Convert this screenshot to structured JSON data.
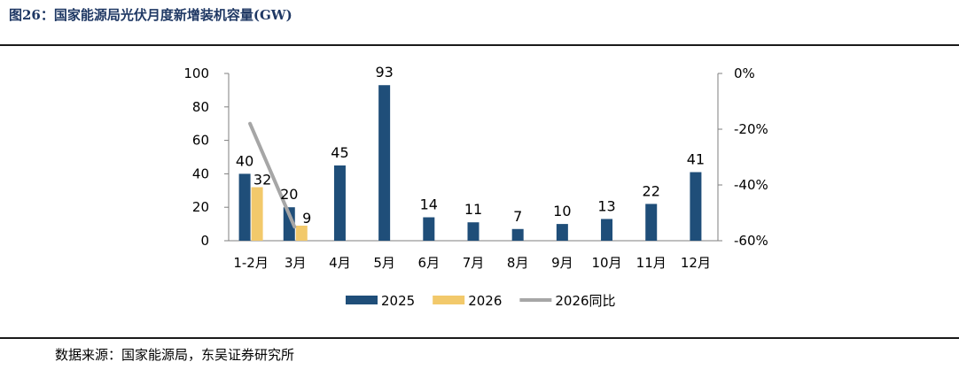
{
  "figure": {
    "title": "图26：国家能源局光伏月度新增装机容量(GW)",
    "source": "数据来源：国家能源局，东吴证券研究所"
  },
  "chart_data": {
    "type": "bar",
    "categories": [
      "1-2月",
      "3月",
      "4月",
      "5月",
      "6月",
      "7月",
      "8月",
      "9月",
      "10月",
      "11月",
      "12月"
    ],
    "series": [
      {
        "name": "2025",
        "type": "bar",
        "axis": "left",
        "color": "#1f4e79",
        "values": [
          40,
          20,
          45,
          93,
          14,
          11,
          7,
          10,
          13,
          22,
          41
        ]
      },
      {
        "name": "2026",
        "type": "bar",
        "axis": "left",
        "color": "#f2c96b",
        "values": [
          32,
          9,
          null,
          null,
          null,
          null,
          null,
          null,
          null,
          null,
          null
        ]
      },
      {
        "name": "2026同比",
        "type": "line",
        "axis": "right",
        "color": "#a6a6a6",
        "values": [
          -18,
          -55,
          null,
          null,
          null,
          null,
          null,
          null,
          null,
          null,
          null
        ]
      }
    ],
    "data_labels": [
      {
        "category": 0,
        "series": 0,
        "text": "40"
      },
      {
        "category": 0,
        "series": 1,
        "text": "32"
      },
      {
        "category": 1,
        "series": 0,
        "text": "20"
      },
      {
        "category": 1,
        "series": 1,
        "text": "9"
      },
      {
        "category": 2,
        "series": 0,
        "text": "45"
      },
      {
        "category": 3,
        "series": 0,
        "text": "93"
      },
      {
        "category": 4,
        "series": 0,
        "text": "14"
      },
      {
        "category": 5,
        "series": 0,
        "text": "11"
      },
      {
        "category": 6,
        "series": 0,
        "text": "7"
      },
      {
        "category": 7,
        "series": 0,
        "text": "10"
      },
      {
        "category": 8,
        "series": 0,
        "text": "13"
      },
      {
        "category": 9,
        "series": 0,
        "text": "22"
      },
      {
        "category": 10,
        "series": 0,
        "text": "41"
      }
    ],
    "y_left": {
      "min": 0,
      "max": 100,
      "ticks": [
        "0",
        "20",
        "40",
        "60",
        "80",
        "100"
      ]
    },
    "y_right": {
      "min": -60,
      "max": 0,
      "ticks": [
        "-60%",
        "-40%",
        "-20%",
        "0%"
      ]
    },
    "grid": false,
    "legend_position": "bottom"
  }
}
